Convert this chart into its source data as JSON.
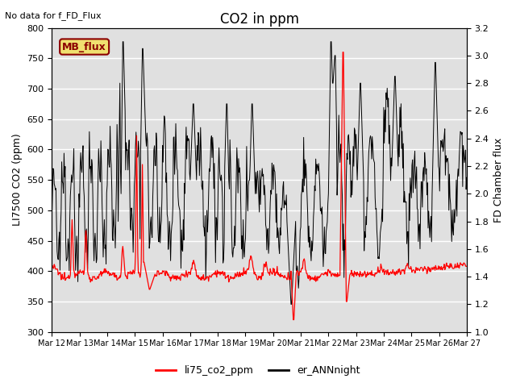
{
  "title": "CO2 in ppm",
  "top_left_text": "No data for f_FD_Flux",
  "ylabel_left": "LI7500 CO2 (ppm)",
  "ylabel_right": "FD Chamber flux",
  "ylim_left": [
    300,
    800
  ],
  "ylim_right": [
    1.0,
    3.2
  ],
  "yticks_left": [
    300,
    350,
    400,
    450,
    500,
    550,
    600,
    650,
    700,
    750,
    800
  ],
  "yticks_right": [
    1.0,
    1.2,
    1.4,
    1.6,
    1.8,
    2.0,
    2.2,
    2.4,
    2.6,
    2.8,
    3.0,
    3.2
  ],
  "xticklabels": [
    "Mar 12",
    "Mar 13",
    "Mar 14",
    "Mar 15",
    "Mar 16",
    "Mar 17",
    "Mar 18",
    "Mar 19",
    "Mar 20",
    "Mar 21",
    "Mar 22",
    "Mar 23",
    "Mar 24",
    "Mar 25",
    "Mar 26",
    "Mar 27"
  ],
  "legend_labels": [
    "li75_co2_ppm",
    "er_ANNnight"
  ],
  "legend_colors": [
    "red",
    "black"
  ],
  "mb_flux_box_facecolor": "#f0e070",
  "mb_flux_box_edgecolor": "#8b0000",
  "mb_flux_text": "MB_flux",
  "mb_flux_text_color": "#8b0000",
  "background_color": "#e0e0e0",
  "line_red_color": "red",
  "line_black_color": "black",
  "title_fontsize": 12,
  "axis_label_fontsize": 9,
  "tick_fontsize": 8,
  "xtick_fontsize": 7
}
